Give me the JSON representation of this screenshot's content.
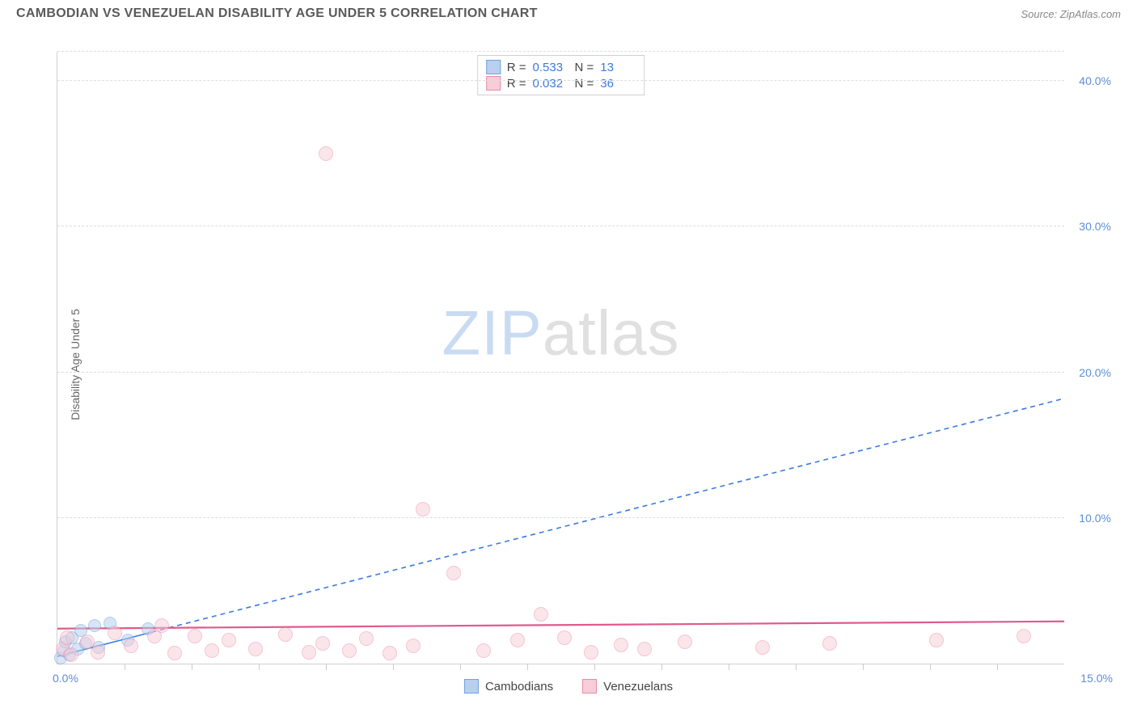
{
  "title": "CAMBODIAN VS VENEZUELAN DISABILITY AGE UNDER 5 CORRELATION CHART",
  "source": "Source: ZipAtlas.com",
  "ylabel": "Disability Age Under 5",
  "watermark": {
    "part1": "ZIP",
    "part2": "atlas"
  },
  "chart": {
    "type": "scatter",
    "xlim": [
      0,
      15
    ],
    "ylim": [
      0,
      42
    ],
    "x_tick_step": 1,
    "y_ticks": [
      10,
      20,
      30,
      40
    ],
    "y_tick_labels": [
      "10.0%",
      "20.0%",
      "30.0%",
      "40.0%"
    ],
    "x_start_label": "0.0%",
    "x_end_label": "15.0%",
    "background_color": "#ffffff",
    "grid_color": "#dddddd",
    "axis_color": "#d0d0d0",
    "tick_label_color": "#5b8dd6",
    "label_fontsize": 14
  },
  "series": [
    {
      "name": "Cambodians",
      "marker_color_fill": "#b8d0ee",
      "marker_color_stroke": "#6fa3e0",
      "marker_radius": 8,
      "fill_opacity": 0.55,
      "trend": {
        "color": "#3b7ae0",
        "dash": "6,5",
        "width": 1.6,
        "x1": 0,
        "y1": 0.5,
        "x2": 15,
        "y2": 18.2,
        "solid_until_x": 1.4
      },
      "stats": {
        "R": "0.533",
        "N": "13"
      },
      "points": [
        {
          "x": 0.05,
          "y": 0.4
        },
        {
          "x": 0.1,
          "y": 0.9
        },
        {
          "x": 0.12,
          "y": 1.5
        },
        {
          "x": 0.18,
          "y": 0.6
        },
        {
          "x": 0.22,
          "y": 1.8
        },
        {
          "x": 0.3,
          "y": 1.0
        },
        {
          "x": 0.35,
          "y": 2.3
        },
        {
          "x": 0.42,
          "y": 1.4
        },
        {
          "x": 0.55,
          "y": 2.6
        },
        {
          "x": 0.62,
          "y": 1.1
        },
        {
          "x": 0.78,
          "y": 2.8
        },
        {
          "x": 1.05,
          "y": 1.6
        },
        {
          "x": 1.35,
          "y": 2.4
        }
      ]
    },
    {
      "name": "Venezuelans",
      "marker_color_fill": "#f6cdd8",
      "marker_color_stroke": "#e88ca6",
      "marker_radius": 9,
      "fill_opacity": 0.5,
      "trend": {
        "color": "#e05a8c",
        "dash": "none",
        "width": 2.2,
        "x1": 0,
        "y1": 2.4,
        "x2": 15,
        "y2": 2.9
      },
      "stats": {
        "R": "0.032",
        "N": "36"
      },
      "points": [
        {
          "x": 0.08,
          "y": 1.0
        },
        {
          "x": 0.15,
          "y": 1.8
        },
        {
          "x": 0.2,
          "y": 0.6
        },
        {
          "x": 0.45,
          "y": 1.5
        },
        {
          "x": 0.6,
          "y": 0.8
        },
        {
          "x": 0.85,
          "y": 2.1
        },
        {
          "x": 1.1,
          "y": 1.2
        },
        {
          "x": 1.45,
          "y": 1.9
        },
        {
          "x": 1.55,
          "y": 2.6
        },
        {
          "x": 1.75,
          "y": 0.7
        },
        {
          "x": 2.05,
          "y": 1.9
        },
        {
          "x": 2.3,
          "y": 0.9
        },
        {
          "x": 2.55,
          "y": 1.6
        },
        {
          "x": 2.95,
          "y": 1.0
        },
        {
          "x": 3.4,
          "y": 2.0
        },
        {
          "x": 3.75,
          "y": 0.8
        },
        {
          "x": 3.95,
          "y": 1.4
        },
        {
          "x": 4.0,
          "y": 35.0
        },
        {
          "x": 4.35,
          "y": 0.9
        },
        {
          "x": 4.6,
          "y": 1.7
        },
        {
          "x": 4.95,
          "y": 0.7
        },
        {
          "x": 5.3,
          "y": 1.2
        },
        {
          "x": 5.45,
          "y": 10.6
        },
        {
          "x": 5.9,
          "y": 6.2
        },
        {
          "x": 6.35,
          "y": 0.9
        },
        {
          "x": 6.85,
          "y": 1.6
        },
        {
          "x": 7.2,
          "y": 3.4
        },
        {
          "x": 7.55,
          "y": 1.8
        },
        {
          "x": 7.95,
          "y": 0.8
        },
        {
          "x": 8.4,
          "y": 1.3
        },
        {
          "x": 8.75,
          "y": 1.0
        },
        {
          "x": 9.35,
          "y": 1.5
        },
        {
          "x": 10.5,
          "y": 1.1
        },
        {
          "x": 11.5,
          "y": 1.4
        },
        {
          "x": 13.1,
          "y": 1.6
        },
        {
          "x": 14.4,
          "y": 1.9
        }
      ]
    }
  ],
  "stats_box": {
    "R_label": "R =",
    "N_label": "N ="
  },
  "legend": {
    "items": [
      "Cambodians",
      "Venezuelans"
    ]
  }
}
